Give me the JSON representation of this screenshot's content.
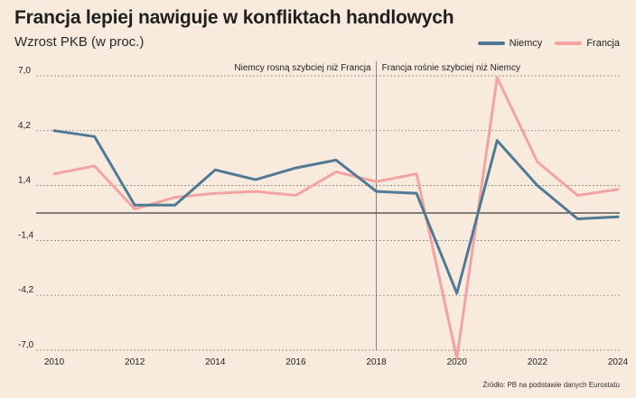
{
  "header": {
    "title": "Francja lepiej nawiguje w konfliktach handlowych",
    "subtitle": "Wzrost PKB (w proc.)"
  },
  "source": "Źródło: PB na podstawie danych Eurostatu",
  "chart_data": {
    "type": "line",
    "title": "Francja lepiej nawiguje w konfliktach handlowych",
    "subtitle": "Wzrost PKB (w proc.)",
    "x": [
      2010,
      2011,
      2012,
      2013,
      2014,
      2015,
      2016,
      2017,
      2018,
      2019,
      2020,
      2021,
      2022,
      2023,
      2024
    ],
    "xticks": [
      2010,
      2012,
      2014,
      2016,
      2018,
      2020,
      2022,
      2024
    ],
    "yticks": [
      7.0,
      4.2,
      1.4,
      -1.4,
      -4.2,
      -7.0
    ],
    "ytick_labels": [
      "7,0",
      "4,2",
      "1,4",
      "-1,4",
      "-4,2",
      "-7,0"
    ],
    "ylim": [
      -7.0,
      7.0
    ],
    "xlim": [
      2010,
      2024
    ],
    "grid": "horizontal dashed",
    "legend_position": "top-right",
    "series": [
      {
        "name": "Niemcy",
        "color": "#4f7a96",
        "values": [
          4.2,
          3.9,
          0.4,
          0.4,
          2.2,
          1.7,
          2.3,
          2.7,
          1.1,
          1.0,
          -4.1,
          3.7,
          1.4,
          -0.3,
          -0.2
        ]
      },
      {
        "name": "Francja",
        "color": "#f4a3a3",
        "values": [
          2.0,
          2.4,
          0.2,
          0.8,
          1.0,
          1.1,
          0.9,
          2.1,
          1.6,
          2.0,
          -7.4,
          6.9,
          2.6,
          0.9,
          1.2
        ]
      }
    ],
    "annotations": [
      {
        "x": 2018,
        "type": "vertical-line",
        "left_text": "Niemcy rosną szybciej niż Francja",
        "right_text": "Francja rośnie szybciej niż Niemcy"
      }
    ]
  }
}
